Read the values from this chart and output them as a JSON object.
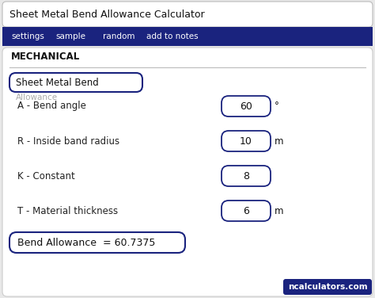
{
  "title": "Sheet Metal Bend Allowance Calculator",
  "nav_items": [
    "settings",
    "sample",
    "random",
    "add to notes"
  ],
  "nav_bg": "#1a237e",
  "nav_text_color": "#ffffff",
  "section_label": "MECHANICAL",
  "dropdown_label": "Sheet Metal Bend",
  "overlap_label": "Allowance",
  "fields": [
    {
      "label": "A - Bend angle",
      "value": "60",
      "unit": "°"
    },
    {
      "label": "R - Inside band radius",
      "value": "10",
      "unit": "m"
    },
    {
      "label": "K - Constant",
      "value": "8",
      "unit": ""
    },
    {
      "label": "T - Material thickness",
      "value": "6",
      "unit": "m"
    }
  ],
  "result_label": "Bend Allowance  = 60.7375",
  "watermark": "ncalculators.com",
  "watermark_bg": "#1a237e",
  "watermark_text_color": "#ffffff",
  "bg_color": "#e8e8e8",
  "card_color": "#ffffff",
  "border_color": "#1a237e",
  "text_color": "#111111",
  "label_color": "#222222",
  "title_bg": "#ffffff",
  "title_border": "#cccccc"
}
